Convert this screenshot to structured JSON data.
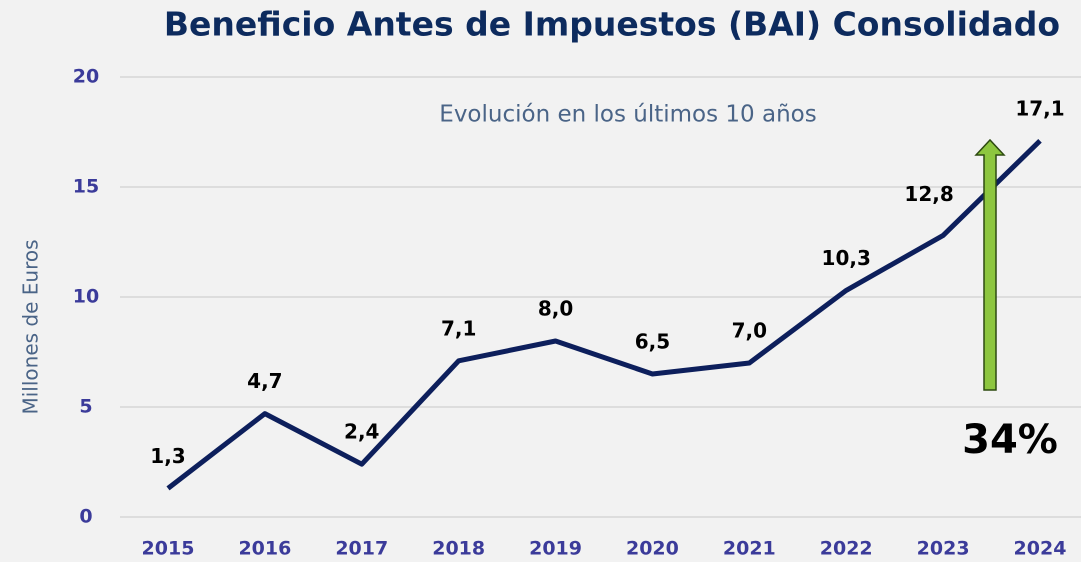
{
  "chart_data": {
    "type": "line",
    "title": "Beneficio Antes de Impuestos (BAI) Consolidado",
    "subtitle": "Evolución en los últimos 10 años",
    "y_label": "Millones de Euros",
    "annotation": "34%",
    "categories": [
      "2015",
      "2016",
      "2017",
      "2018",
      "2019",
      "2020",
      "2021",
      "2022",
      "2023",
      "2024"
    ],
    "series": [
      {
        "name": "BAI",
        "color": "#0d1f5c",
        "values": [
          1.3,
          4.7,
          2.4,
          7.1,
          8.0,
          6.5,
          7.0,
          10.3,
          12.8,
          17.1
        ],
        "value_labels": [
          "1,3",
          "4,7",
          "2,4",
          "7,1",
          "8,0",
          "6,5",
          "7,0",
          "10,3",
          "12,8",
          "17,1"
        ]
      }
    ],
    "ylim": [
      0,
      20
    ],
    "yticks": [
      0,
      5,
      10,
      15,
      20
    ],
    "grid": true
  }
}
